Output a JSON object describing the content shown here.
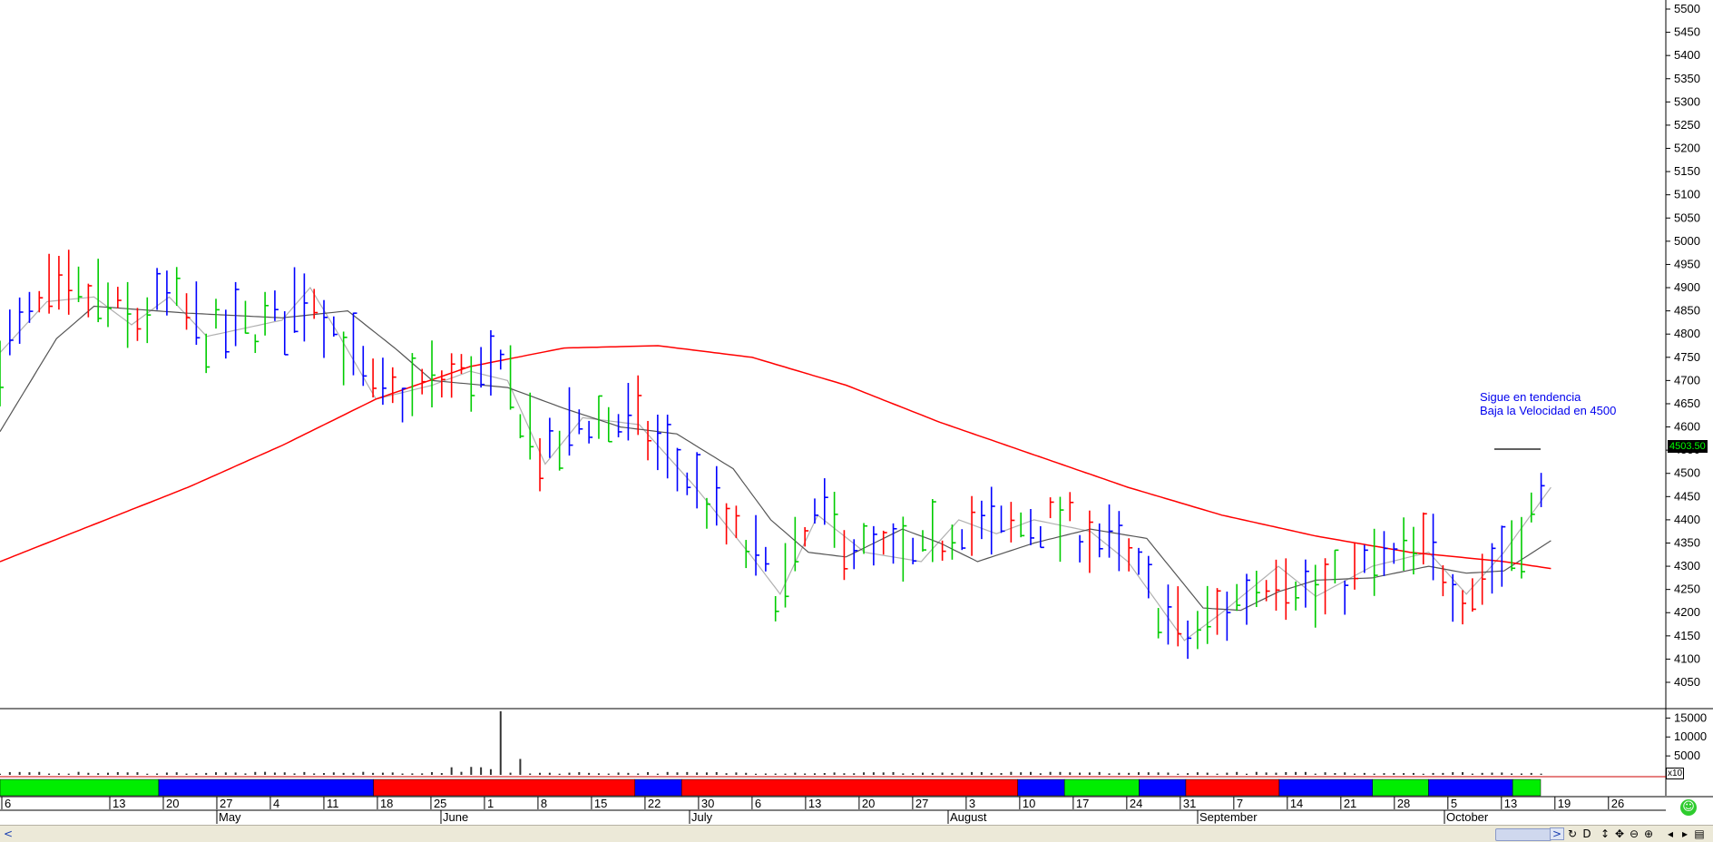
{
  "chart_data": {
    "type": "ohlc_bar",
    "annotation_lines": [
      "Sigue en tendencia",
      "Baja la Velocidad en 4500"
    ],
    "last_price_label": "4503.50",
    "volume_scale_label": "x10",
    "y_axis": {
      "ylim": [
        4020,
        5510
      ],
      "ticks": [
        5500,
        5450,
        5400,
        5350,
        5300,
        5250,
        5200,
        5150,
        5100,
        5050,
        5000,
        4950,
        4900,
        4850,
        4800,
        4750,
        4700,
        4650,
        4600,
        4550,
        4500,
        4450,
        4400,
        4350,
        4300,
        4250,
        4200,
        4150,
        4100,
        4050
      ]
    },
    "volume_axis": {
      "ylim": [
        0,
        17000
      ],
      "ticks": [
        15000,
        10000,
        5000
      ]
    },
    "x_axis": {
      "day_ticks": [
        "6",
        "13",
        "20",
        "27",
        "4",
        "11",
        "18",
        "25",
        "1",
        "8",
        "15",
        "22",
        "30",
        "6",
        "13",
        "20",
        "27",
        "3",
        "10",
        "17",
        "24",
        "31",
        "7",
        "14",
        "21",
        "28",
        "5",
        "13",
        "19",
        "26"
      ],
      "months": [
        "May",
        "June",
        "July",
        "August",
        "September",
        "October"
      ]
    },
    "series": [
      {
        "name": "Bars",
        "count": 158
      },
      {
        "name": "Long moving average",
        "color": "#ff0000"
      },
      {
        "name": "Medium moving average",
        "color": "#555555"
      },
      {
        "name": "Short moving average",
        "color": "#aaaaaa"
      }
    ],
    "bar_colors": {
      "up": "#00cc00",
      "down": "#ff0000",
      "neutral": "#0000ff"
    },
    "indicator_strip": [
      {
        "color": "#00ee00",
        "days": 17
      },
      {
        "color": "#0000ff",
        "days": 23
      },
      {
        "color": "#ff0000",
        "days": 28
      },
      {
        "color": "#0000ff",
        "days": 5
      },
      {
        "color": "#ff0000",
        "days": 36
      },
      {
        "color": "#0000ff",
        "days": 5
      },
      {
        "color": "#00ee00",
        "days": 8
      },
      {
        "color": "#0000ff",
        "days": 5
      },
      {
        "color": "#ff0000",
        "days": 10
      },
      {
        "color": "#0000ff",
        "days": 10
      },
      {
        "color": "#00ee00",
        "days": 6
      },
      {
        "color": "#0000ff",
        "days": 9
      },
      {
        "color": "#00ee00",
        "days": 3
      }
    ],
    "volume_spikes": [
      {
        "day_index": 46,
        "value": 2000
      },
      {
        "day_index": 48,
        "value": 2100
      },
      {
        "day_index": 49,
        "value": 2000
      },
      {
        "day_index": 50,
        "value": 1500
      },
      {
        "day_index": 51,
        "value": 16800
      },
      {
        "day_index": 53,
        "value": 4200
      }
    ],
    "long_ma_points": [
      [
        0,
        4310
      ],
      [
        10,
        4390
      ],
      [
        20,
        4470
      ],
      [
        30,
        4560
      ],
      [
        40,
        4660
      ],
      [
        50,
        4730
      ],
      [
        60,
        4770
      ],
      [
        70,
        4775
      ],
      [
        80,
        4750
      ],
      [
        90,
        4690
      ],
      [
        100,
        4610
      ],
      [
        110,
        4540
      ],
      [
        120,
        4470
      ],
      [
        130,
        4410
      ],
      [
        140,
        4365
      ],
      [
        150,
        4330
      ],
      [
        160,
        4310
      ],
      [
        165,
        4295
      ]
    ],
    "medium_ma_points": [
      [
        0,
        4590
      ],
      [
        6,
        4790
      ],
      [
        10,
        4860
      ],
      [
        20,
        4845
      ],
      [
        30,
        4835
      ],
      [
        37,
        4850
      ],
      [
        42,
        4770
      ],
      [
        46,
        4700
      ],
      [
        54,
        4685
      ],
      [
        60,
        4640
      ],
      [
        66,
        4600
      ],
      [
        72,
        4585
      ],
      [
        78,
        4510
      ],
      [
        82,
        4400
      ],
      [
        86,
        4330
      ],
      [
        90,
        4320
      ],
      [
        96,
        4380
      ],
      [
        100,
        4350
      ],
      [
        104,
        4310
      ],
      [
        110,
        4350
      ],
      [
        116,
        4380
      ],
      [
        122,
        4360
      ],
      [
        128,
        4210
      ],
      [
        132,
        4205
      ],
      [
        136,
        4245
      ],
      [
        140,
        4270
      ],
      [
        146,
        4275
      ],
      [
        152,
        4300
      ],
      [
        156,
        4285
      ],
      [
        160,
        4290
      ],
      [
        165,
        4355
      ]
    ],
    "short_ma_points": [
      [
        0,
        4760
      ],
      [
        5,
        4870
      ],
      [
        10,
        4880
      ],
      [
        14,
        4820
      ],
      [
        18,
        4880
      ],
      [
        22,
        4795
      ],
      [
        30,
        4830
      ],
      [
        33,
        4900
      ],
      [
        36,
        4800
      ],
      [
        40,
        4660
      ],
      [
        46,
        4690
      ],
      [
        50,
        4720
      ],
      [
        54,
        4700
      ],
      [
        58,
        4520
      ],
      [
        62,
        4620
      ],
      [
        68,
        4605
      ],
      [
        74,
        4470
      ],
      [
        80,
        4320
      ],
      [
        83,
        4240
      ],
      [
        87,
        4410
      ],
      [
        92,
        4330
      ],
      [
        98,
        4310
      ],
      [
        102,
        4400
      ],
      [
        106,
        4370
      ],
      [
        110,
        4400
      ],
      [
        116,
        4375
      ],
      [
        120,
        4310
      ],
      [
        126,
        4140
      ],
      [
        130,
        4200
      ],
      [
        136,
        4300
      ],
      [
        140,
        4235
      ],
      [
        146,
        4300
      ],
      [
        152,
        4330
      ],
      [
        156,
        4240
      ],
      [
        160,
        4330
      ],
      [
        165,
        4470
      ]
    ]
  }
}
